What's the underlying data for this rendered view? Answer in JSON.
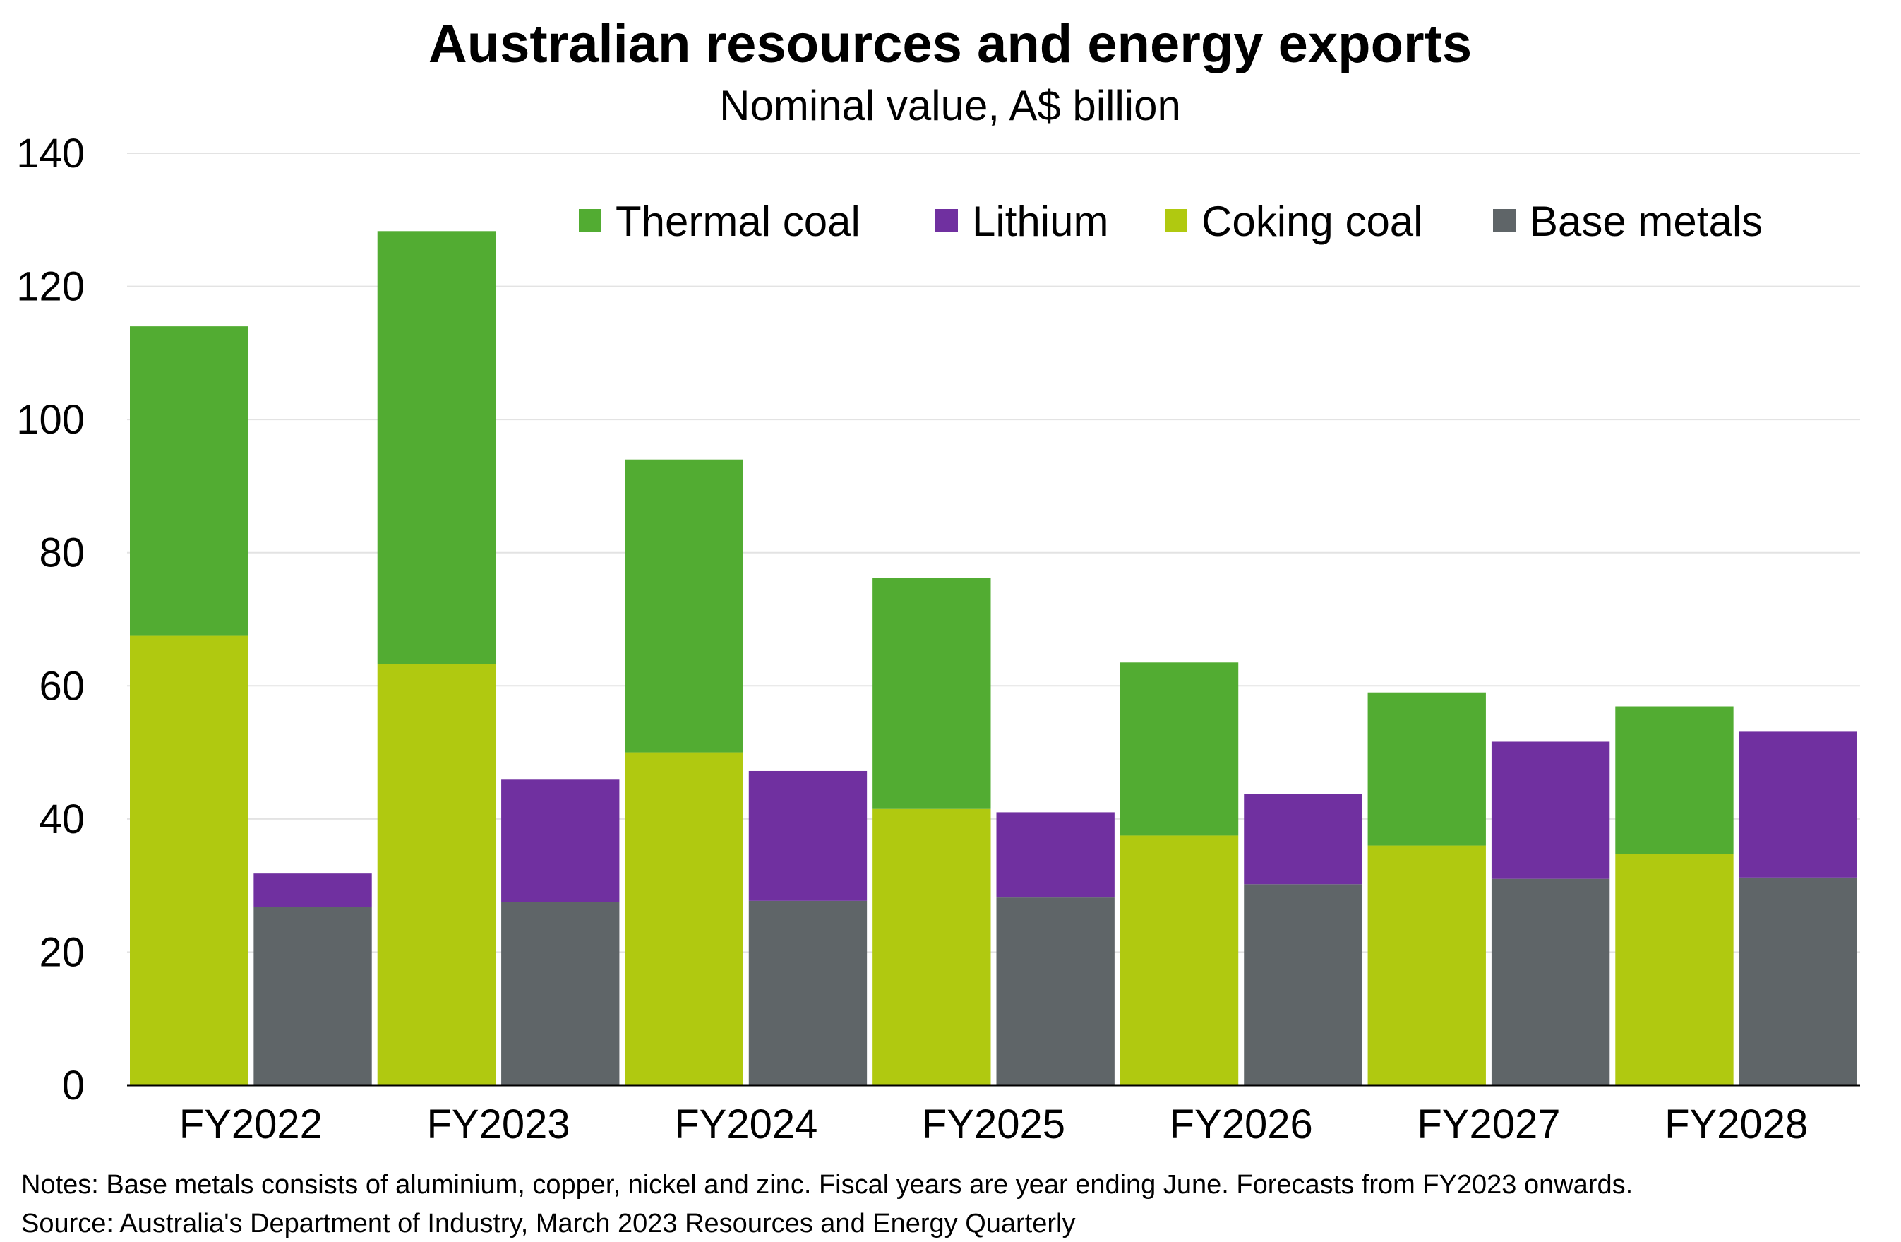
{
  "chart_data": {
    "type": "bar",
    "title": "Australian resources and energy exports",
    "subtitle": "Nominal value, A$ billion",
    "xlabel": "",
    "ylabel": "",
    "ylim": [
      0,
      140
    ],
    "yticks": [
      "0",
      "20",
      "40",
      "60",
      "80",
      "100",
      "120",
      "140"
    ],
    "grid": true,
    "legend_position": "top-right",
    "categories": [
      "FY2022",
      "FY2023",
      "FY2024",
      "FY2025",
      "FY2026",
      "FY2027",
      "FY2028"
    ],
    "series": [
      {
        "name": "Coking coal",
        "color": "#b0c910",
        "stack": "coal",
        "values": [
          67.5,
          63.3,
          50,
          41.5,
          37.5,
          36,
          34.7
        ]
      },
      {
        "name": "Thermal coal",
        "color": "#52ac32",
        "stack": "coal",
        "values": [
          46.5,
          65,
          44,
          34.7,
          26,
          23,
          22.2
        ]
      },
      {
        "name": "Base metals",
        "color": "#5f6568",
        "stack": "metals",
        "values": [
          26.8,
          27.5,
          27.7,
          28.2,
          30.2,
          31,
          31.2
        ]
      },
      {
        "name": "Lithium",
        "color": "#7030a0",
        "stack": "metals",
        "values": [
          5,
          18.5,
          19.5,
          12.8,
          13.5,
          20.6,
          22
        ]
      }
    ],
    "legend": [
      {
        "name": "Thermal coal",
        "color": "#52ac32"
      },
      {
        "name": "Lithium",
        "color": "#7030a0"
      },
      {
        "name": "Coking coal",
        "color": "#b0c910"
      },
      {
        "name": "Base metals",
        "color": "#5f6568"
      }
    ],
    "notes": "Notes: Base metals consists of aluminium,  copper, nickel and zinc. Fiscal years are year ending June. Forecasts from FY2023 onwards.",
    "source": "Source: Australia's  Department of Industry, March  2023 Resources and Energy Quarterly"
  }
}
